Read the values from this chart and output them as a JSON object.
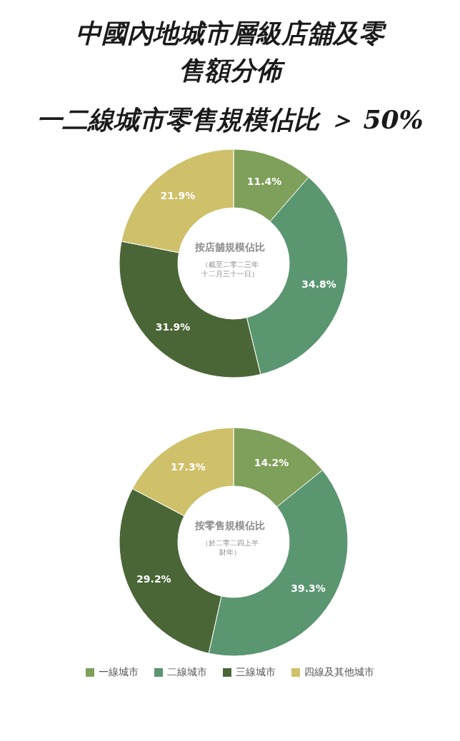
{
  "chart_data": [
    {
      "type": "donut",
      "title": "中國內地城市層級店舖及零售額分佈",
      "subtitle": "一二線城市零售規模佔比 ＞ 50%",
      "categories": [
        null,
        null,
        null,
        null
      ],
      "values": [
        11.4,
        34.8,
        31.9,
        21.9
      ],
      "value_labels": [
        "11.4%",
        "34.8%",
        "31.9%",
        "21.9%"
      ],
      "colors": [
        "#7fa05a",
        "#5a9670",
        "#4a6636",
        "#cfc06a"
      ],
      "annotations": [
        "按店舖規模佔比",
        "（截至二零二三年十二月三十一日）"
      ]
    },
    {
      "type": "donut",
      "categories": [
        "一線城市",
        "二線城市",
        "三線城市",
        "四線及其他城市"
      ],
      "values": [
        14.2,
        39.3,
        29.2,
        17.3
      ],
      "value_labels": [
        "14.2%",
        "39.3%",
        "29.2%",
        "17.3%"
      ],
      "colors": [
        "#7fa05a",
        "#5a9670",
        "#4a6636",
        "#cfc06a"
      ],
      "annotations": [
        "按零售規模佔比",
        "（於二零二四上半財年）"
      ],
      "legend": "bottom"
    }
  ]
}
